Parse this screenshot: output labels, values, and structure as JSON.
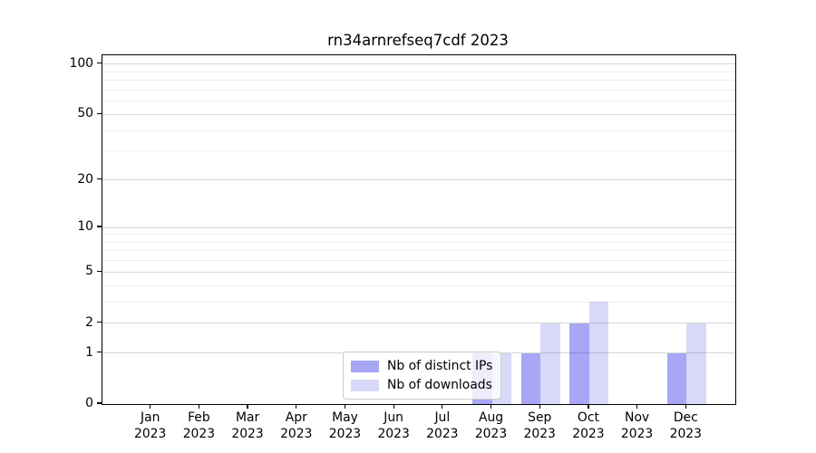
{
  "title": "rn34arnrefseq7cdf 2023",
  "chart_data": {
    "type": "bar",
    "title": "rn34arnrefseq7cdf 2023",
    "x_month_labels": [
      "Jan",
      "Feb",
      "Mar",
      "Apr",
      "May",
      "Jun",
      "Jul",
      "Aug",
      "Sep",
      "Oct",
      "Nov",
      "Dec"
    ],
    "x_year": "2023",
    "series": [
      {
        "name": "Nb of distinct IPs",
        "color": "#a7a7f5",
        "values": [
          0,
          0,
          0,
          0,
          0,
          0,
          0,
          1,
          1,
          2,
          0,
          1
        ]
      },
      {
        "name": "Nb of downloads",
        "color": "#d8d8f8",
        "values": [
          0,
          0,
          0,
          0,
          0,
          0,
          0,
          1,
          2,
          3,
          0,
          2
        ]
      }
    ],
    "yscale": "log1p",
    "ytick_labels": [
      0,
      1,
      2,
      5,
      10,
      20,
      50,
      100
    ],
    "minor_grid_values": [
      3,
      4,
      6,
      7,
      8,
      9,
      30,
      40,
      60,
      70,
      80,
      90
    ],
    "ylim": [
      0,
      113
    ],
    "grid": true,
    "legend_position": "lower-center",
    "colors": {
      "axis": "#000000",
      "major_grid": "#d6d6d6",
      "minor_grid": "#efefef"
    }
  }
}
